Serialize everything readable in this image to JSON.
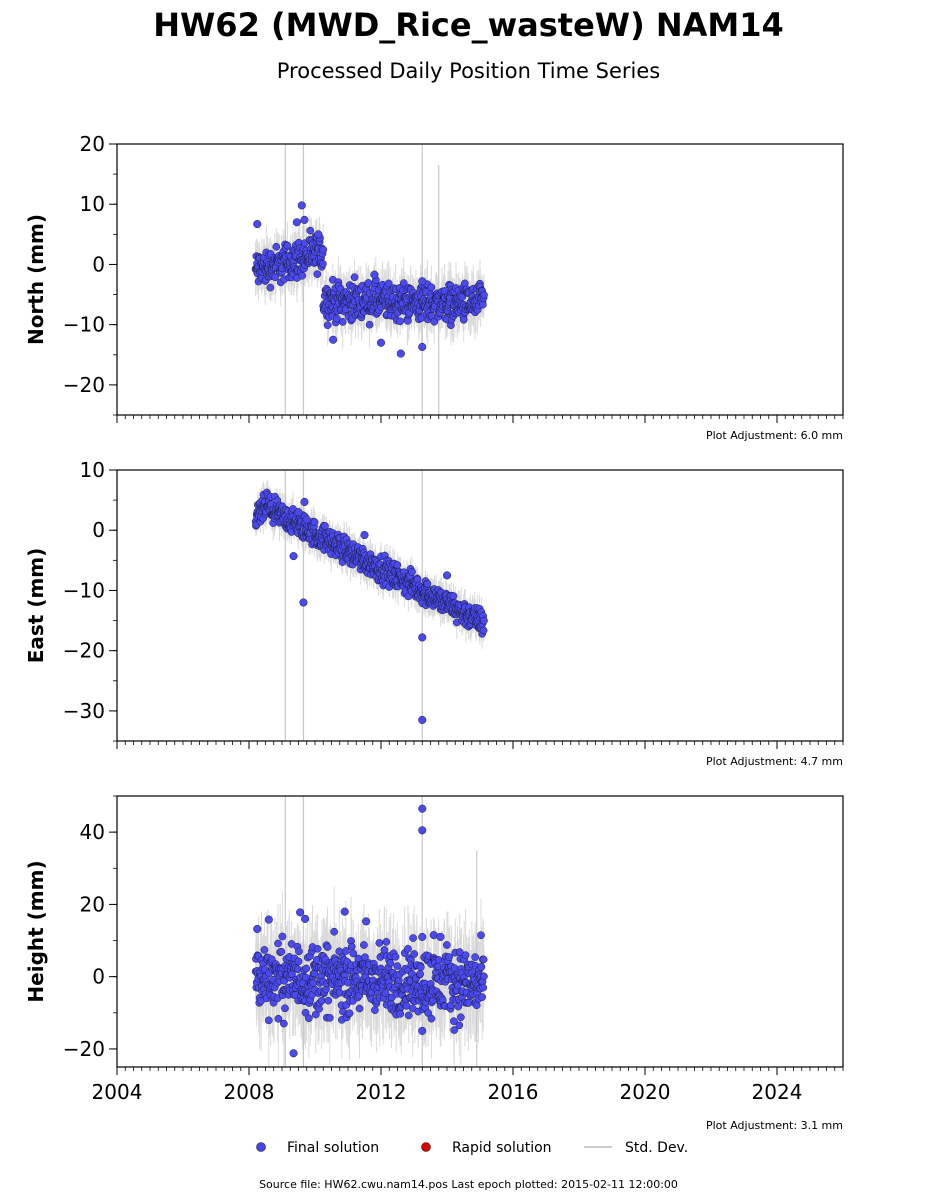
{
  "chart_data": {
    "type": "scatter",
    "title": "HW62 (MWD_Rice_wasteW) NAM14",
    "subtitle": "Processed Daily Position Time Series",
    "x_ticks": [
      "2004",
      "2008",
      "2012",
      "2016",
      "2020",
      "2024"
    ],
    "xlim": [
      2004,
      2026
    ],
    "legend": {
      "placement": "bottom-center",
      "entries": [
        {
          "label": "Final solution",
          "color": "#4444ee",
          "marker": "circle"
        },
        {
          "label": "Rapid solution",
          "color": "#dd0000",
          "marker": "circle"
        },
        {
          "label": "Std. Dev.",
          "color": "#cccccc",
          "marker": "line"
        }
      ]
    },
    "source_note": "Source file: HW62.cwu.nam14.pos  Last epoch plotted: 2015-02-11 12:00:00",
    "panels": [
      {
        "ylabel": "North (mm)",
        "ylim": [
          -25,
          20
        ],
        "y_ticks": [
          -20,
          -10,
          0,
          10,
          20
        ],
        "adjustment": "Plot Adjustment: 6.0 mm",
        "series": [
          {
            "name": "Final solution",
            "segments": [
              {
                "x0": 2008.2,
                "x1": 2010.25,
                "y0": -1.0,
                "y1": 2.0
              },
              {
                "x0": 2010.25,
                "x1": 2015.12,
                "y0": -6.0,
                "y1": -6.5
              }
            ],
            "scatter": 1.6
          },
          {
            "name": "Rapid solution",
            "segments": [],
            "scatter": 0
          }
        ],
        "outliers": [
          [
            2008.25,
            6.7
          ],
          [
            2009.45,
            7.0
          ],
          [
            2009.6,
            9.8
          ],
          [
            2009.68,
            7.4
          ],
          [
            2010.1,
            5.0
          ],
          [
            2010.55,
            -12.5
          ],
          [
            2011.8,
            -1.7
          ],
          [
            2012.0,
            -13.0
          ],
          [
            2012.6,
            -14.8
          ],
          [
            2013.25,
            -13.7
          ],
          [
            2013.25,
            -2.8
          ]
        ],
        "stddev_spikes": [
          [
            2009.1,
            -25,
            20
          ],
          [
            2009.65,
            -25,
            20
          ],
          [
            2013.25,
            -25,
            20
          ],
          [
            2013.75,
            -25,
            16.5
          ]
        ]
      },
      {
        "ylabel": "East (mm)",
        "ylim": [
          -35,
          10
        ],
        "y_ticks": [
          -30,
          -20,
          -10,
          0,
          10
        ],
        "adjustment": "Plot Adjustment: 4.7 mm",
        "series": [
          {
            "name": "Final solution",
            "segments": [
              {
                "x0": 2008.2,
                "x1": 2008.6,
                "y0": 2.0,
                "y1": 4.5
              },
              {
                "x0": 2008.6,
                "x1": 2015.12,
                "y0": 3.5,
                "y1": -15.5
              }
            ],
            "scatter": 1.1
          },
          {
            "name": "Rapid solution",
            "segments": [],
            "scatter": 0
          }
        ],
        "outliers": [
          [
            2009.35,
            -4.3
          ],
          [
            2009.5,
            3.0
          ],
          [
            2009.65,
            -12.0
          ],
          [
            2009.68,
            4.7
          ],
          [
            2009.75,
            1.8
          ],
          [
            2011.5,
            -0.8
          ],
          [
            2013.25,
            -17.8
          ],
          [
            2013.25,
            -31.5
          ],
          [
            2014.0,
            -7.5
          ]
        ],
        "stddev_spikes": [
          [
            2009.1,
            -35,
            10
          ],
          [
            2009.65,
            -35,
            10
          ],
          [
            2013.25,
            -35,
            10
          ]
        ]
      },
      {
        "ylabel": "Height (mm)",
        "ylim": [
          -25,
          50
        ],
        "y_ticks": [
          -20,
          0,
          20,
          40
        ],
        "adjustment": "Plot Adjustment: 3.1 mm",
        "series": [
          {
            "name": "Final solution",
            "segments": [
              {
                "x0": 2008.2,
                "x1": 2015.12,
                "y0": 0.0,
                "y1": -2.0
              }
            ],
            "scatter": 5.0
          },
          {
            "name": "Rapid solution",
            "segments": [],
            "scatter": 0
          }
        ],
        "outliers": [
          [
            2008.25,
            13.2
          ],
          [
            2008.6,
            15.8
          ],
          [
            2009.35,
            -21.2
          ],
          [
            2009.55,
            17.8
          ],
          [
            2009.7,
            16.0
          ],
          [
            2010.9,
            18.0
          ],
          [
            2011.55,
            15.3
          ],
          [
            2013.25,
            46.5
          ],
          [
            2013.25,
            40.5
          ],
          [
            2013.25,
            11.0
          ],
          [
            2013.25,
            -15.0
          ],
          [
            2013.6,
            11.5
          ],
          [
            2013.8,
            11.0
          ]
        ],
        "stddev_spikes": [
          [
            2009.1,
            -25,
            50
          ],
          [
            2009.65,
            -25,
            50
          ],
          [
            2013.25,
            -25,
            50
          ],
          [
            2014.9,
            -25,
            35
          ]
        ]
      }
    ]
  }
}
